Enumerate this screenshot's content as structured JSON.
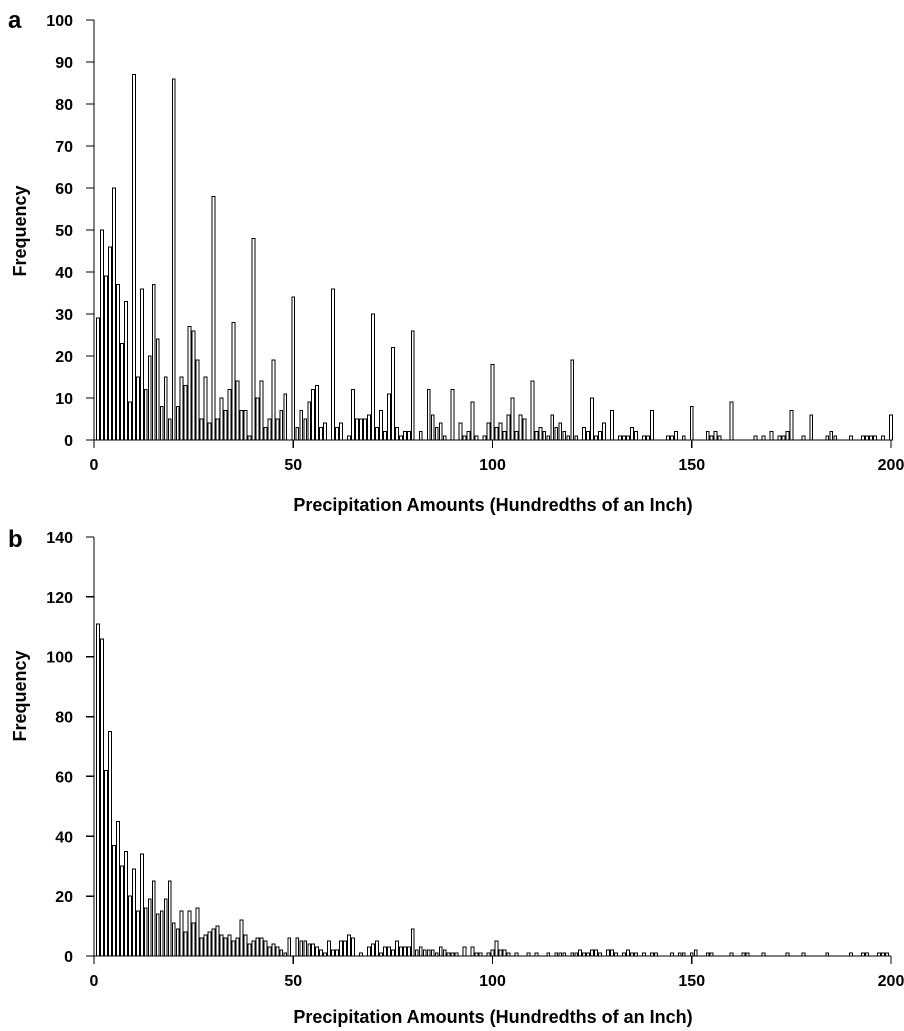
{
  "chart_data": [
    {
      "type": "bar",
      "panel_label": "a",
      "xlabel": "Precipitation Amounts (Hundredths of an Inch)",
      "ylabel": "Frequency",
      "xlim": [
        0,
        200
      ],
      "ylim": [
        0,
        100
      ],
      "xticks": [
        0,
        50,
        100,
        150,
        200
      ],
      "yticks": [
        0,
        10,
        20,
        30,
        40,
        50,
        60,
        70,
        80,
        90,
        100
      ],
      "grid": false,
      "x": [
        1,
        2,
        3,
        4,
        5,
        6,
        7,
        8,
        9,
        10,
        11,
        12,
        13,
        14,
        15,
        16,
        17,
        18,
        19,
        20,
        21,
        22,
        23,
        24,
        25,
        26,
        27,
        28,
        29,
        30,
        31,
        32,
        33,
        34,
        35,
        36,
        37,
        38,
        39,
        40,
        41,
        42,
        43,
        44,
        45,
        46,
        47,
        48,
        49,
        50,
        51,
        52,
        53,
        54,
        55,
        56,
        57,
        58,
        59,
        60,
        61,
        62,
        63,
        64,
        65,
        66,
        67,
        68,
        69,
        70,
        71,
        72,
        73,
        74,
        75,
        76,
        77,
        78,
        79,
        80,
        81,
        82,
        83,
        84,
        85,
        86,
        87,
        88,
        89,
        90,
        91,
        92,
        93,
        94,
        95,
        96,
        97,
        98,
        99,
        100,
        101,
        102,
        103,
        104,
        105,
        106,
        107,
        108,
        109,
        110,
        111,
        112,
        113,
        114,
        115,
        116,
        117,
        118,
        119,
        120,
        121,
        122,
        123,
        124,
        125,
        126,
        127,
        128,
        129,
        130,
        131,
        132,
        133,
        134,
        135,
        136,
        137,
        138,
        139,
        140,
        141,
        142,
        143,
        144,
        145,
        146,
        147,
        148,
        149,
        150,
        151,
        152,
        153,
        154,
        155,
        156,
        157,
        158,
        159,
        160,
        161,
        162,
        163,
        164,
        165,
        166,
        167,
        168,
        169,
        170,
        171,
        172,
        173,
        174,
        175,
        176,
        177,
        178,
        179,
        180,
        181,
        182,
        183,
        184,
        185,
        186,
        187,
        188,
        189,
        190,
        191,
        192,
        193,
        194,
        195,
        196,
        197,
        198,
        199,
        200
      ],
      "values": [
        29,
        50,
        39,
        46,
        60,
        37,
        23,
        33,
        9,
        87,
        15,
        36,
        12,
        20,
        37,
        24,
        8,
        15,
        5,
        86,
        8,
        15,
        13,
        27,
        26,
        19,
        5,
        15,
        4,
        58,
        5,
        10,
        7,
        12,
        28,
        14,
        7,
        7,
        1,
        48,
        10,
        14,
        3,
        5,
        19,
        5,
        7,
        11,
        0,
        34,
        3,
        7,
        5,
        9,
        12,
        13,
        3,
        4,
        0,
        36,
        3,
        4,
        0,
        1,
        12,
        5,
        5,
        5,
        6,
        30,
        3,
        7,
        2,
        11,
        22,
        3,
        1,
        2,
        2,
        26,
        0,
        2,
        0,
        12,
        6,
        3,
        4,
        1,
        0,
        12,
        0,
        4,
        1,
        2,
        9,
        1,
        0,
        1,
        4,
        18,
        3,
        4,
        2,
        6,
        10,
        2,
        6,
        5,
        0,
        14,
        2,
        3,
        2,
        1,
        6,
        3,
        4,
        2,
        1,
        19,
        1,
        0,
        3,
        2,
        10,
        1,
        2,
        4,
        0,
        7,
        0,
        1,
        1,
        1,
        3,
        2,
        0,
        1,
        1,
        7,
        0,
        0,
        0,
        1,
        1,
        2,
        0,
        1,
        0,
        8,
        0,
        0,
        0,
        2,
        1,
        2,
        1,
        0,
        0,
        9,
        0,
        0,
        0,
        0,
        0,
        1,
        0,
        1,
        0,
        2,
        0,
        1,
        1,
        2,
        7,
        0,
        0,
        1,
        0,
        6,
        0,
        0,
        0,
        1,
        2,
        1,
        0,
        0,
        0,
        1,
        0,
        0,
        1,
        1,
        1,
        1,
        0,
        1,
        0,
        6
      ]
    },
    {
      "type": "bar",
      "panel_label": "b",
      "xlabel": "Precipitation Amounts (Hundredths of an Inch)",
      "ylabel": "Frequency",
      "xlim": [
        0,
        200
      ],
      "ylim": [
        0,
        140
      ],
      "xticks": [
        0,
        50,
        100,
        150,
        200
      ],
      "yticks": [
        0,
        20,
        40,
        60,
        80,
        100,
        120,
        140
      ],
      "grid": false,
      "x": [
        1,
        2,
        3,
        4,
        5,
        6,
        7,
        8,
        9,
        10,
        11,
        12,
        13,
        14,
        15,
        16,
        17,
        18,
        19,
        20,
        21,
        22,
        23,
        24,
        25,
        26,
        27,
        28,
        29,
        30,
        31,
        32,
        33,
        34,
        35,
        36,
        37,
        38,
        39,
        40,
        41,
        42,
        43,
        44,
        45,
        46,
        47,
        48,
        49,
        50,
        51,
        52,
        53,
        54,
        55,
        56,
        57,
        58,
        59,
        60,
        61,
        62,
        63,
        64,
        65,
        66,
        67,
        68,
        69,
        70,
        71,
        72,
        73,
        74,
        75,
        76,
        77,
        78,
        79,
        80,
        81,
        82,
        83,
        84,
        85,
        86,
        87,
        88,
        89,
        90,
        91,
        92,
        93,
        94,
        95,
        96,
        97,
        98,
        99,
        100,
        101,
        102,
        103,
        104,
        105,
        106,
        107,
        108,
        109,
        110,
        111,
        112,
        113,
        114,
        115,
        116,
        117,
        118,
        119,
        120,
        121,
        122,
        123,
        124,
        125,
        126,
        127,
        128,
        129,
        130,
        131,
        132,
        133,
        134,
        135,
        136,
        137,
        138,
        139,
        140,
        141,
        142,
        143,
        144,
        145,
        146,
        147,
        148,
        149,
        150,
        151,
        152,
        153,
        154,
        155,
        156,
        157,
        158,
        159,
        160,
        161,
        162,
        163,
        164,
        165,
        166,
        167,
        168,
        169,
        170,
        171,
        172,
        173,
        174,
        175,
        176,
        177,
        178,
        179,
        180,
        181,
        182,
        183,
        184,
        185,
        186,
        187,
        188,
        189,
        190,
        191,
        192,
        193,
        194,
        195,
        196,
        197,
        198,
        199,
        200
      ],
      "values": [
        111,
        106,
        62,
        75,
        37,
        45,
        30,
        35,
        20,
        29,
        15,
        34,
        16,
        19,
        25,
        14,
        15,
        19,
        25,
        11,
        9,
        15,
        8,
        15,
        11,
        16,
        6,
        7,
        8,
        9,
        10,
        7,
        6,
        7,
        5,
        6,
        12,
        7,
        4,
        5,
        6,
        6,
        5,
        3,
        4,
        3,
        2,
        1,
        6,
        0,
        6,
        5,
        5,
        4,
        4,
        3,
        2,
        1,
        5,
        2,
        2,
        5,
        5,
        7,
        6,
        0,
        1,
        0,
        3,
        4,
        5,
        1,
        3,
        3,
        2,
        5,
        3,
        3,
        3,
        9,
        2,
        3,
        2,
        2,
        2,
        1,
        3,
        2,
        1,
        1,
        1,
        0,
        3,
        0,
        3,
        1,
        1,
        0,
        1,
        2,
        5,
        2,
        2,
        1,
        0,
        1,
        0,
        0,
        1,
        0,
        1,
        0,
        0,
        1,
        0,
        1,
        1,
        1,
        0,
        1,
        1,
        2,
        1,
        1,
        2,
        2,
        1,
        0,
        2,
        2,
        1,
        0,
        1,
        2,
        1,
        1,
        0,
        1,
        0,
        1,
        1,
        0,
        0,
        0,
        1,
        0,
        1,
        1,
        0,
        1,
        2,
        0,
        0,
        1,
        1,
        0,
        0,
        0,
        0,
        1,
        0,
        0,
        1,
        1,
        0,
        0,
        0,
        1,
        0,
        0,
        0,
        0,
        0,
        1,
        0,
        0,
        0,
        1,
        0,
        0,
        0,
        0,
        0,
        1,
        0,
        0,
        0,
        0,
        0,
        1,
        0,
        0,
        1,
        1,
        0,
        0,
        1,
        1,
        1,
        0
      ]
    }
  ]
}
